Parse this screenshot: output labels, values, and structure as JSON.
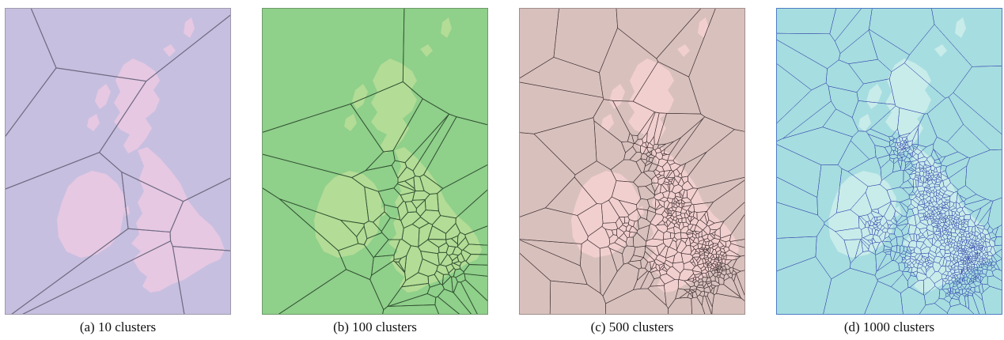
{
  "figure": {
    "panels": [
      {
        "caption": "(a) 10 clusters",
        "clusters": 10,
        "colors": {
          "sea": "#c7bfdf",
          "land": "#e6c8e3",
          "edges": "#6f6880",
          "frame": "#9f9aae"
        }
      },
      {
        "caption": "(b) 100 clusters",
        "clusters": 100,
        "colors": {
          "sea": "#8fd08a",
          "land": "#b3dc96",
          "edges": "#2f4d30",
          "frame": "#6f9a6c"
        }
      },
      {
        "caption": "(c) 500 clusters",
        "clusters": 500,
        "colors": {
          "sea": "#d8c0bd",
          "land": "#f2cfcf",
          "edges": "#3a2d2e",
          "frame": "#a08f8d"
        }
      },
      {
        "caption": "(d) 1000 clusters",
        "clusters": 1000,
        "colors": {
          "sea": "#a6dde0",
          "land": "#c8ecea",
          "edges": "#2a3aa8",
          "frame": "#4e7cc4"
        }
      }
    ]
  }
}
